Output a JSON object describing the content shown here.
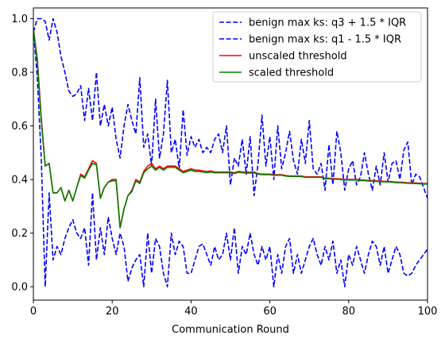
{
  "chart_data": {
    "type": "line",
    "title": "",
    "xlabel": "Communication Round",
    "ylabel": "",
    "xlim": [
      0,
      100
    ],
    "ylim": [
      -0.05,
      1.04
    ],
    "xticks": [
      0,
      20,
      40,
      60,
      80,
      100
    ],
    "yticks": [
      0.0,
      0.2,
      0.4,
      0.6,
      0.8,
      1.0
    ],
    "xtick_labels": [
      "0",
      "20",
      "40",
      "60",
      "80",
      "100"
    ],
    "ytick_labels": [
      "0.0",
      "0.2",
      "0.4",
      "0.6",
      "0.8",
      "1.0"
    ],
    "grid": false,
    "legend_position": "top-right",
    "series": [
      {
        "name": "benign max ks: q3 + 1.5 * IQR",
        "color": "#0000ff",
        "dash": "dashed",
        "x": [
          0,
          1,
          2,
          3,
          4,
          5,
          6,
          7,
          8,
          9,
          10,
          11,
          12,
          13,
          14,
          15,
          16,
          17,
          18,
          19,
          20,
          21,
          22,
          23,
          24,
          25,
          26,
          27,
          28,
          29,
          30,
          31,
          32,
          33,
          34,
          35,
          36,
          37,
          38,
          39,
          40,
          41,
          42,
          43,
          44,
          45,
          46,
          47,
          48,
          49,
          50,
          51,
          52,
          53,
          54,
          55,
          56,
          57,
          58,
          59,
          60,
          61,
          62,
          63,
          64,
          65,
          66,
          67,
          68,
          69,
          70,
          71,
          72,
          73,
          74,
          75,
          76,
          77,
          78,
          79,
          80,
          81,
          82,
          83,
          84,
          85,
          86,
          87,
          88,
          89,
          90,
          91,
          92,
          93,
          94,
          95,
          96,
          97,
          98,
          99,
          100
        ],
        "values": [
          0.95,
          1.0,
          1.0,
          0.99,
          0.92,
          1.0,
          0.95,
          0.86,
          0.8,
          0.73,
          0.71,
          0.72,
          0.75,
          0.62,
          0.74,
          0.62,
          0.8,
          0.6,
          0.68,
          0.6,
          0.67,
          0.55,
          0.48,
          0.6,
          0.68,
          0.62,
          0.57,
          0.78,
          0.52,
          0.57,
          0.45,
          0.7,
          0.48,
          0.57,
          0.77,
          0.5,
          0.55,
          0.44,
          0.66,
          0.49,
          0.56,
          0.52,
          0.55,
          0.5,
          0.52,
          0.5,
          0.55,
          0.57,
          0.5,
          0.6,
          0.38,
          0.48,
          0.45,
          0.55,
          0.42,
          0.56,
          0.34,
          0.46,
          0.64,
          0.45,
          0.56,
          0.4,
          0.6,
          0.44,
          0.5,
          0.58,
          0.47,
          0.42,
          0.55,
          0.46,
          0.62,
          0.44,
          0.42,
          0.46,
          0.36,
          0.53,
          0.38,
          0.58,
          0.5,
          0.36,
          0.44,
          0.47,
          0.38,
          0.41,
          0.5,
          0.42,
          0.36,
          0.45,
          0.38,
          0.5,
          0.39,
          0.46,
          0.47,
          0.4,
          0.51,
          0.54,
          0.38,
          0.42,
          0.41,
          0.37,
          0.33
        ]
      },
      {
        "name": "benign max ks: q1 - 1.5 * IQR",
        "color": "#0000ff",
        "dash": "dashed",
        "x": [
          0,
          1,
          2,
          3,
          4,
          5,
          6,
          7,
          8,
          9,
          10,
          11,
          12,
          13,
          14,
          15,
          16,
          17,
          18,
          19,
          20,
          21,
          22,
          23,
          24,
          25,
          26,
          27,
          28,
          29,
          30,
          31,
          32,
          33,
          34,
          35,
          36,
          37,
          38,
          39,
          40,
          41,
          42,
          43,
          44,
          45,
          46,
          47,
          48,
          49,
          50,
          51,
          52,
          53,
          54,
          55,
          56,
          57,
          58,
          59,
          60,
          61,
          62,
          63,
          64,
          65,
          66,
          67,
          68,
          69,
          70,
          71,
          72,
          73,
          74,
          75,
          76,
          77,
          78,
          79,
          80,
          81,
          82,
          83,
          84,
          85,
          86,
          87,
          88,
          89,
          90,
          91,
          92,
          93,
          94,
          95,
          96,
          97,
          98,
          99,
          100
        ],
        "values": [
          0.96,
          0.78,
          0.48,
          0.0,
          0.35,
          0.1,
          0.15,
          0.12,
          0.18,
          0.22,
          0.25,
          0.2,
          0.18,
          0.22,
          0.08,
          0.35,
          0.1,
          0.22,
          0.12,
          0.26,
          0.18,
          0.12,
          0.2,
          0.15,
          0.02,
          0.07,
          0.1,
          0.12,
          0.0,
          0.2,
          0.05,
          0.18,
          0.15,
          0.05,
          0.0,
          0.2,
          0.12,
          0.17,
          0.15,
          0.05,
          0.05,
          0.1,
          0.15,
          0.16,
          0.12,
          0.08,
          0.15,
          0.1,
          0.12,
          0.2,
          0.1,
          0.22,
          0.05,
          0.15,
          0.12,
          0.2,
          0.12,
          0.08,
          0.15,
          0.1,
          0.15,
          0.0,
          0.12,
          0.05,
          0.15,
          0.18,
          0.05,
          0.12,
          0.05,
          0.1,
          0.15,
          0.18,
          0.12,
          0.08,
          0.15,
          0.1,
          0.17,
          0.05,
          0.1,
          0.0,
          0.12,
          0.08,
          0.15,
          0.1,
          0.05,
          0.12,
          0.17,
          0.15,
          0.08,
          0.15,
          0.05,
          0.1,
          0.15,
          0.12,
          0.05,
          0.04,
          0.05,
          0.08,
          0.1,
          0.12,
          0.14
        ]
      },
      {
        "name": "unscaled threshold",
        "color": "#ff0000",
        "dash": "solid",
        "x": [
          0,
          1,
          2,
          3,
          4,
          5,
          6,
          7,
          8,
          9,
          10,
          11,
          12,
          13,
          14,
          15,
          16,
          17,
          18,
          19,
          20,
          21,
          22,
          23,
          24,
          25,
          26,
          27,
          28,
          29,
          30,
          31,
          32,
          33,
          34,
          35,
          36,
          37,
          38,
          39,
          40,
          41,
          42,
          43,
          44,
          45,
          46,
          47,
          48,
          49,
          50,
          51,
          52,
          53,
          54,
          55,
          56,
          57,
          58,
          59,
          60,
          61,
          62,
          63,
          64,
          65,
          66,
          67,
          68,
          69,
          70,
          71,
          72,
          73,
          74,
          75,
          76,
          77,
          78,
          79,
          80,
          81,
          82,
          83,
          84,
          85,
          86,
          87,
          88,
          89,
          90,
          91,
          92,
          93,
          94,
          95,
          96,
          97,
          98,
          99,
          100
        ],
        "values": [
          0.96,
          0.85,
          0.63,
          0.45,
          0.46,
          0.35,
          0.35,
          0.37,
          0.32,
          0.36,
          0.32,
          0.37,
          0.42,
          0.41,
          0.44,
          0.47,
          0.46,
          0.33,
          0.37,
          0.39,
          0.4,
          0.4,
          0.22,
          0.29,
          0.34,
          0.36,
          0.4,
          0.39,
          0.43,
          0.45,
          0.46,
          0.44,
          0.45,
          0.44,
          0.45,
          0.45,
          0.45,
          0.44,
          0.43,
          0.435,
          0.44,
          0.435,
          0.435,
          0.432,
          0.43,
          0.432,
          0.428,
          0.428,
          0.428,
          0.428,
          0.428,
          0.425,
          0.43,
          0.428,
          0.427,
          0.427,
          0.428,
          0.422,
          0.42,
          0.42,
          0.42,
          0.418,
          0.418,
          0.418,
          0.415,
          0.413,
          0.413,
          0.413,
          0.413,
          0.41,
          0.41,
          0.41,
          0.41,
          0.41,
          0.405,
          0.405,
          0.403,
          0.403,
          0.402,
          0.4,
          0.4,
          0.4,
          0.4,
          0.398,
          0.398,
          0.396,
          0.396,
          0.395,
          0.394,
          0.393,
          0.393,
          0.392,
          0.39,
          0.39,
          0.389,
          0.388,
          0.388,
          0.387,
          0.386,
          0.385,
          0.385
        ]
      },
      {
        "name": "scaled threshold",
        "color": "#008000",
        "dash": "solid",
        "x": [
          0,
          1,
          2,
          3,
          4,
          5,
          6,
          7,
          8,
          9,
          10,
          11,
          12,
          13,
          14,
          15,
          16,
          17,
          18,
          19,
          20,
          21,
          22,
          23,
          24,
          25,
          26,
          27,
          28,
          29,
          30,
          31,
          32,
          33,
          34,
          35,
          36,
          37,
          38,
          39,
          40,
          41,
          42,
          43,
          44,
          45,
          46,
          47,
          48,
          49,
          50,
          51,
          52,
          53,
          54,
          55,
          56,
          57,
          58,
          59,
          60,
          61,
          62,
          63,
          64,
          65,
          66,
          67,
          68,
          69,
          70,
          71,
          72,
          73,
          74,
          75,
          76,
          77,
          78,
          79,
          80,
          81,
          82,
          83,
          84,
          85,
          86,
          87,
          88,
          89,
          90,
          91,
          92,
          93,
          94,
          95,
          96,
          97,
          98,
          99,
          100
        ],
        "values": [
          0.96,
          0.84,
          0.62,
          0.45,
          0.46,
          0.35,
          0.35,
          0.37,
          0.32,
          0.36,
          0.32,
          0.37,
          0.415,
          0.405,
          0.435,
          0.46,
          0.455,
          0.33,
          0.37,
          0.39,
          0.395,
          0.395,
          0.22,
          0.29,
          0.34,
          0.355,
          0.395,
          0.385,
          0.425,
          0.44,
          0.45,
          0.435,
          0.445,
          0.435,
          0.445,
          0.445,
          0.445,
          0.435,
          0.425,
          0.43,
          0.435,
          0.43,
          0.43,
          0.428,
          0.425,
          0.428,
          0.425,
          0.425,
          0.425,
          0.425,
          0.425,
          0.422,
          0.427,
          0.425,
          0.424,
          0.424,
          0.425,
          0.42,
          0.418,
          0.418,
          0.418,
          0.416,
          0.416,
          0.416,
          0.413,
          0.411,
          0.411,
          0.411,
          0.411,
          0.408,
          0.408,
          0.408,
          0.408,
          0.408,
          0.403,
          0.403,
          0.401,
          0.401,
          0.4,
          0.398,
          0.398,
          0.398,
          0.398,
          0.396,
          0.396,
          0.394,
          0.394,
          0.393,
          0.392,
          0.391,
          0.391,
          0.39,
          0.388,
          0.388,
          0.387,
          0.386,
          0.386,
          0.385,
          0.384,
          0.383,
          0.383
        ]
      }
    ]
  }
}
